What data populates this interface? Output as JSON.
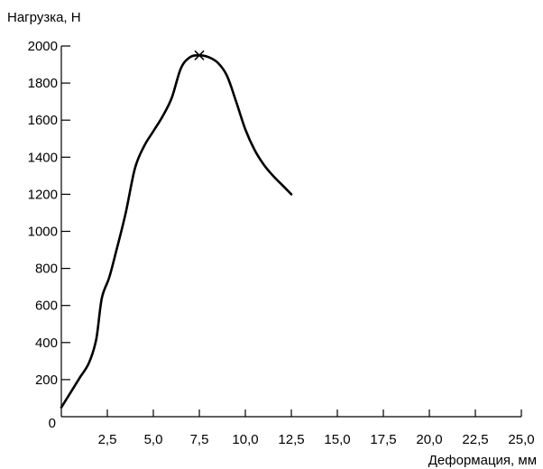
{
  "chart_data": {
    "type": "line",
    "title": "",
    "ylabel": "Нагрузка, Н",
    "xlabel": "Деформация, мм",
    "xlim": [
      0,
      25
    ],
    "ylim": [
      0,
      2000
    ],
    "origin_label": "0",
    "x_ticks": [
      {
        "value": 2.5,
        "label": "2,5"
      },
      {
        "value": 5,
        "label": "5,0"
      },
      {
        "value": 7.5,
        "label": "7,5"
      },
      {
        "value": 10,
        "label": "10,0"
      },
      {
        "value": 12.5,
        "label": "12,5"
      },
      {
        "value": 15,
        "label": "15,0"
      },
      {
        "value": 17.5,
        "label": "17,5"
      },
      {
        "value": 20,
        "label": "20,0"
      },
      {
        "value": 22.5,
        "label": "22,5"
      },
      {
        "value": 25,
        "label": "25,0"
      }
    ],
    "y_ticks": [
      {
        "value": 200,
        "label": "200"
      },
      {
        "value": 400,
        "label": "400"
      },
      {
        "value": 600,
        "label": "600"
      },
      {
        "value": 800,
        "label": "800"
      },
      {
        "value": 1000,
        "label": "1000"
      },
      {
        "value": 1200,
        "label": "1200"
      },
      {
        "value": 1400,
        "label": "1400"
      },
      {
        "value": 1600,
        "label": "1600"
      },
      {
        "value": 1800,
        "label": "1800"
      },
      {
        "value": 2000,
        "label": "2000"
      }
    ],
    "grid": false,
    "series": [
      {
        "x": [
          0,
          0.5,
          1.0,
          1.5,
          1.9,
          2.2,
          2.6,
          3.0,
          3.5,
          4.0,
          4.5,
          5.0,
          5.5,
          6.0,
          6.5,
          7.0,
          7.5,
          8.0,
          8.5,
          9.0,
          9.5,
          10.0,
          10.5,
          11.0,
          11.5,
          12.0,
          12.5
        ],
        "y": [
          50,
          130,
          210,
          290,
          420,
          640,
          750,
          900,
          1100,
          1340,
          1460,
          1540,
          1620,
          1720,
          1880,
          1940,
          1950,
          1940,
          1910,
          1840,
          1700,
          1550,
          1440,
          1360,
          1300,
          1250,
          1200
        ]
      }
    ],
    "peak_marker": {
      "x": 7.5,
      "y": 1950,
      "symbol": "×"
    },
    "colors": {
      "line": "#000000",
      "axis": "#000000"
    }
  }
}
